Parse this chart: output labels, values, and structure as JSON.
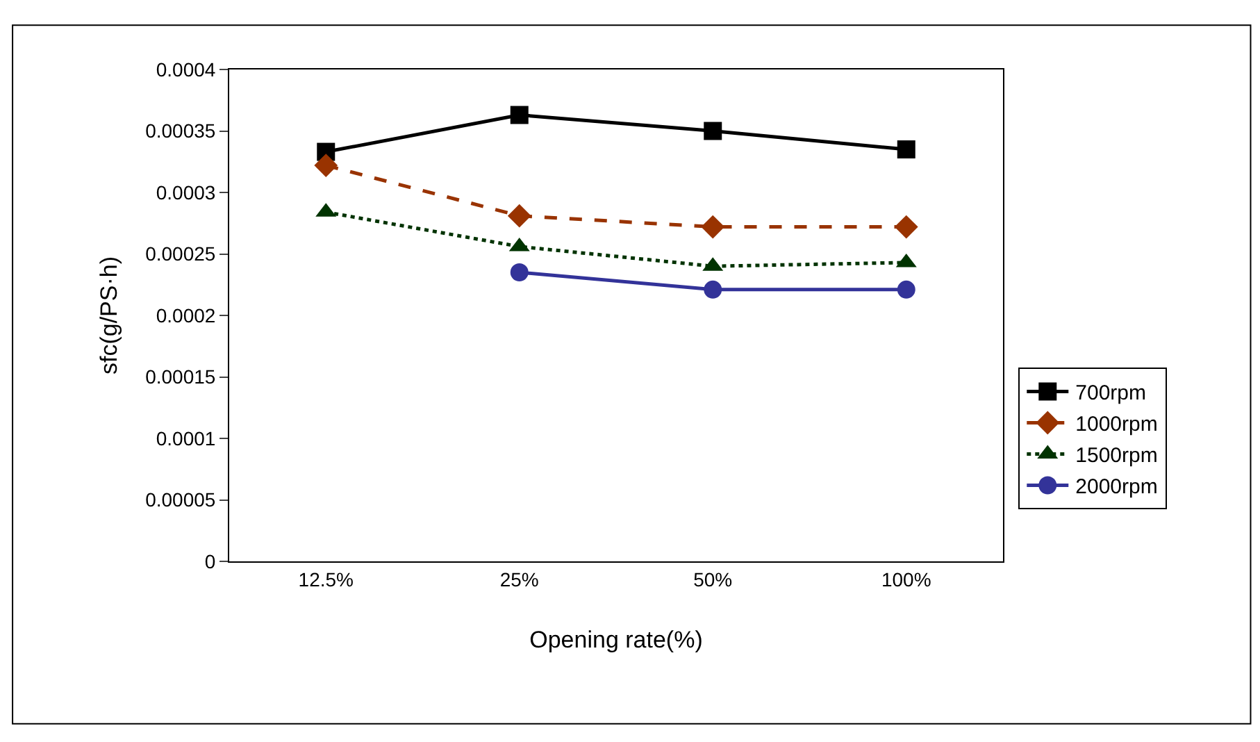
{
  "chart_data": {
    "type": "line",
    "xlabel": "Opening rate(%)",
    "ylabel": "sfc(g/PS·h)",
    "categories": [
      "12.5%",
      "25%",
      "50%",
      "100%"
    ],
    "ylim": [
      0,
      0.0004
    ],
    "yticks": [
      0,
      {
        "value": 5e-05,
        "label": "0.00005"
      },
      0.0001,
      0.00015,
      0.0002,
      0.00025,
      0.0003,
      0.00035,
      0.0004
    ],
    "grid": false,
    "legend": "right",
    "series": [
      {
        "name": "700rpm",
        "color": "#000000",
        "marker": "square",
        "line_style": "solid",
        "values": [
          0.000333,
          0.000363,
          0.00035,
          0.000335
        ]
      },
      {
        "name": "1000rpm",
        "color": "#993300",
        "marker": "diamond",
        "line_style": "dashed",
        "values": [
          0.000322,
          0.000281,
          0.000272,
          0.000272
        ]
      },
      {
        "name": "1500rpm",
        "color": "#003300",
        "marker": "triangle",
        "line_style": "dotted",
        "values": [
          0.000284,
          0.000256,
          0.00024,
          0.000243
        ]
      },
      {
        "name": "2000rpm",
        "color": "#333399",
        "marker": "circle",
        "line_style": "solid",
        "values": [
          null,
          0.000235,
          0.000221,
          0.000221
        ]
      }
    ]
  }
}
